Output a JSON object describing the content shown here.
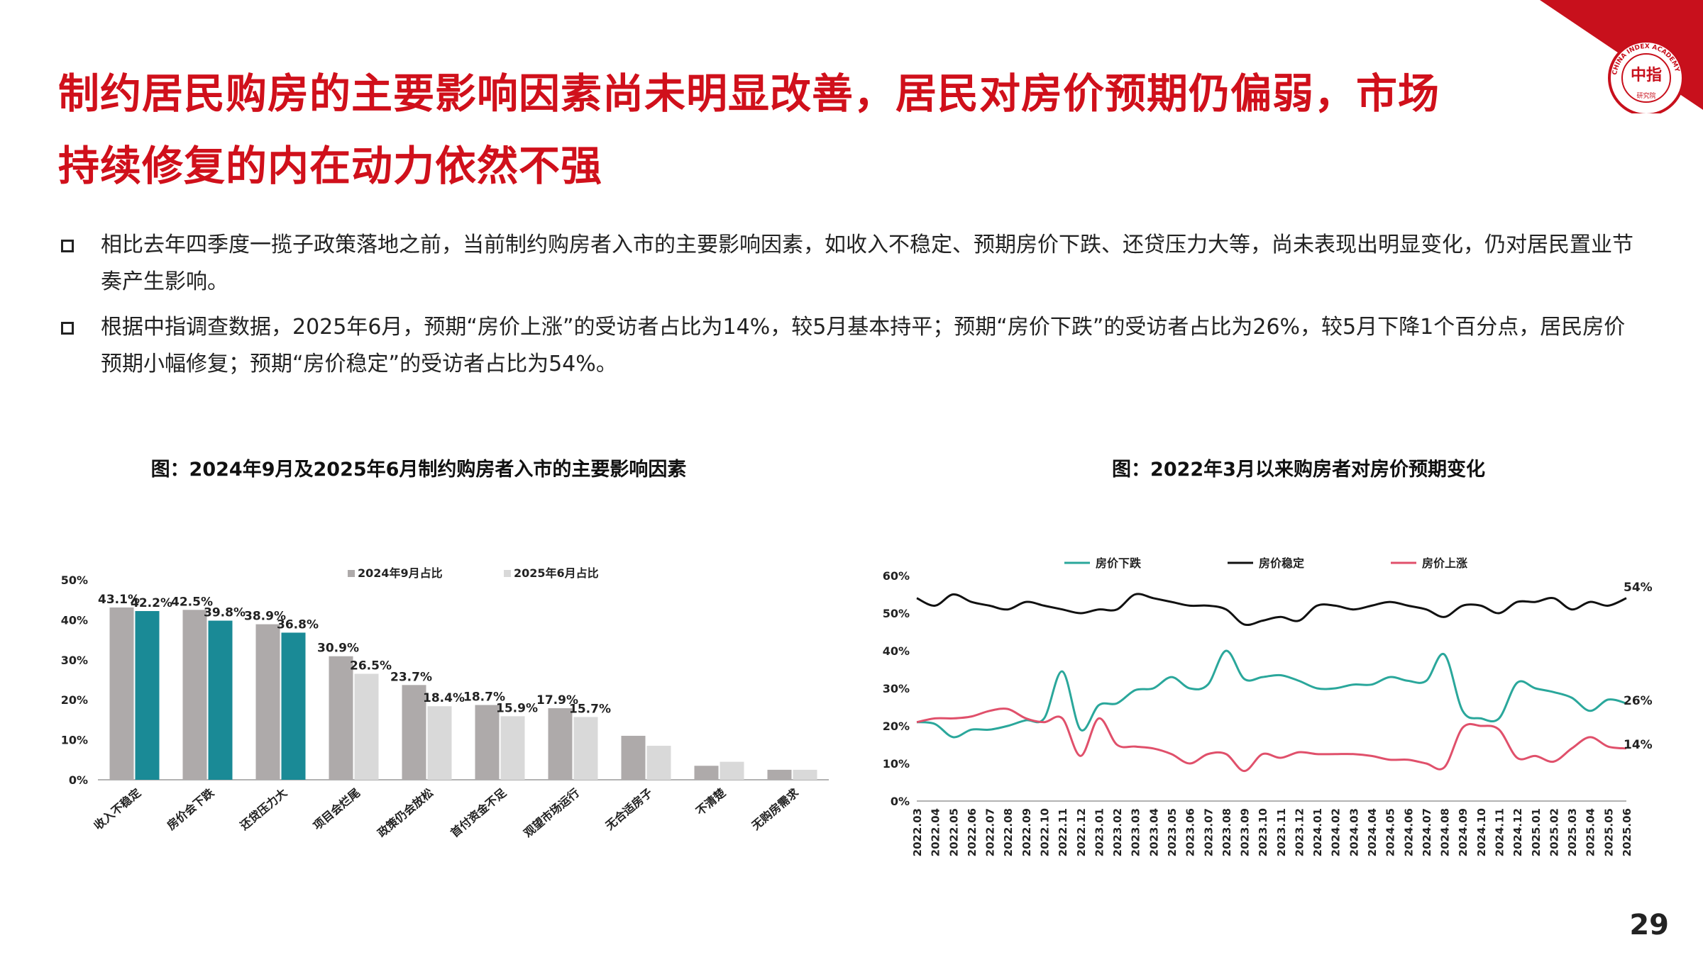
{
  "logo": {
    "ring_text": "CHINA INDEX ACADEMY",
    "center_text": "中指",
    "bottom_text": "研究院",
    "color": "#c8101c"
  },
  "header": {
    "title_line1": "制约居民购房的主要影响因素尚未明显改善，居民对房价预期仍偏弱，市场",
    "title_line2": "持续修复的内在动力依然不强"
  },
  "bullets": [
    {
      "text": "相比去年四季度一揽子政策落地之前，当前制约购房者入市的主要影响因素，如收入不稳定、预期房价下跌、还贷压力大等，尚未表现出明显变化，仍对居民置业节奏产生影响。"
    },
    {
      "text": "根据中指调查数据，2025年6月，预期“房价上涨”的受访者占比为14%，较5月基本持平；预期“房价下跌”的受访者占比为26%，较5月下降1个百分点，居民房价预期小幅修复；预期“房价稳定”的受访者占比为54%。"
    }
  ],
  "page_number": "29",
  "chart_data": [
    {
      "type": "bar",
      "title": "图：2024年9月及2025年6月制约购房者入市的主要影响因素",
      "categories": [
        "收入不稳定",
        "房价会下跌",
        "还贷压力大",
        "项目会烂尾",
        "政策仍会放松",
        "首付资金不足",
        "观望市场运行",
        "无合适房子",
        "不清楚",
        "无购房需求"
      ],
      "series": [
        {
          "name": "2024年9月占比",
          "values": [
            43.1,
            42.5,
            38.9,
            30.9,
            23.7,
            18.7,
            17.9,
            11.0,
            3.5,
            2.5
          ],
          "labels": [
            "43.1%",
            "42.5%",
            "38.9%",
            "30.9%",
            "23.7%",
            "18.7%",
            "17.9%",
            "",
            "",
            ""
          ],
          "color": "#aeaaaa"
        },
        {
          "name": "2025年6月占比",
          "values": [
            42.2,
            39.8,
            36.8,
            26.5,
            18.4,
            15.9,
            15.7,
            8.5,
            4.5,
            2.5
          ],
          "labels": [
            "42.2%",
            "39.8%",
            "36.8%",
            "26.5%",
            "18.4%",
            "15.9%",
            "15.7%",
            "",
            "",
            ""
          ],
          "color_highlight": "#1a8a96",
          "color": "#d9d9d9"
        }
      ],
      "yticks": [
        "0%",
        "10%",
        "20%",
        "30%",
        "40%",
        "50%"
      ],
      "ylim": [
        0,
        50
      ],
      "grid": false,
      "legend": "top"
    },
    {
      "type": "line",
      "title": "图：2022年3月以来购房者对房价预期变化",
      "x": [
        "2022.03",
        "2022.04",
        "2022.05",
        "2022.06",
        "2022.07",
        "2022.08",
        "2022.09",
        "2022.10",
        "2022.11",
        "2022.12",
        "2023.01",
        "2023.02",
        "2023.03",
        "2023.04",
        "2023.05",
        "2023.06",
        "2023.07",
        "2023.08",
        "2023.09",
        "2023.10",
        "2023.11",
        "2023.12",
        "2024.01",
        "2024.02",
        "2024.03",
        "2024.04",
        "2024.05",
        "2024.06",
        "2024.07",
        "2024.08",
        "2024.09",
        "2024.10",
        "2024.11",
        "2024.12",
        "2025.01",
        "2025.02",
        "2025.03",
        "2025.04",
        "2025.05",
        "2025.06"
      ],
      "series": [
        {
          "name": "房价下跌",
          "color": "#2aa79b",
          "values": [
            21,
            20.5,
            17,
            19,
            19,
            20,
            21.5,
            22,
            34.5,
            19,
            25.5,
            26,
            29.5,
            30,
            33,
            30,
            31,
            40,
            32.5,
            33,
            33.5,
            32,
            30,
            30,
            31,
            31,
            33,
            32,
            32,
            39,
            24,
            22,
            22,
            31.5,
            30,
            29,
            27.5,
            24,
            27,
            26
          ]
        },
        {
          "name": "房价稳定",
          "color": "#111111",
          "values": [
            54,
            52,
            55,
            53,
            52,
            51,
            53,
            52,
            51,
            50,
            51,
            51,
            55,
            54,
            53,
            52,
            52,
            51,
            47,
            48,
            49,
            48,
            52,
            52,
            51,
            52,
            53,
            52,
            51,
            49,
            52,
            52,
            50,
            53,
            53,
            54,
            51,
            53,
            52,
            54
          ]
        },
        {
          "name": "房价上涨",
          "color": "#e0506b",
          "values": [
            21,
            22,
            22,
            22.5,
            24,
            24.5,
            22,
            21,
            22,
            12,
            22,
            15,
            14.5,
            14,
            12.5,
            10,
            12.5,
            12.5,
            8,
            12.5,
            11.5,
            13,
            12.5,
            12.5,
            12.5,
            12,
            11,
            11,
            10,
            9,
            19.5,
            20,
            19,
            11.5,
            12,
            10.5,
            14,
            17,
            14.5,
            14
          ]
        }
      ],
      "end_labels": [
        "26%",
        "54%",
        "14%"
      ],
      "yticks": [
        "0%",
        "10%",
        "20%",
        "30%",
        "40%",
        "50%",
        "60%"
      ],
      "ylim": [
        0,
        60
      ],
      "grid": false,
      "legend": "top"
    }
  ]
}
